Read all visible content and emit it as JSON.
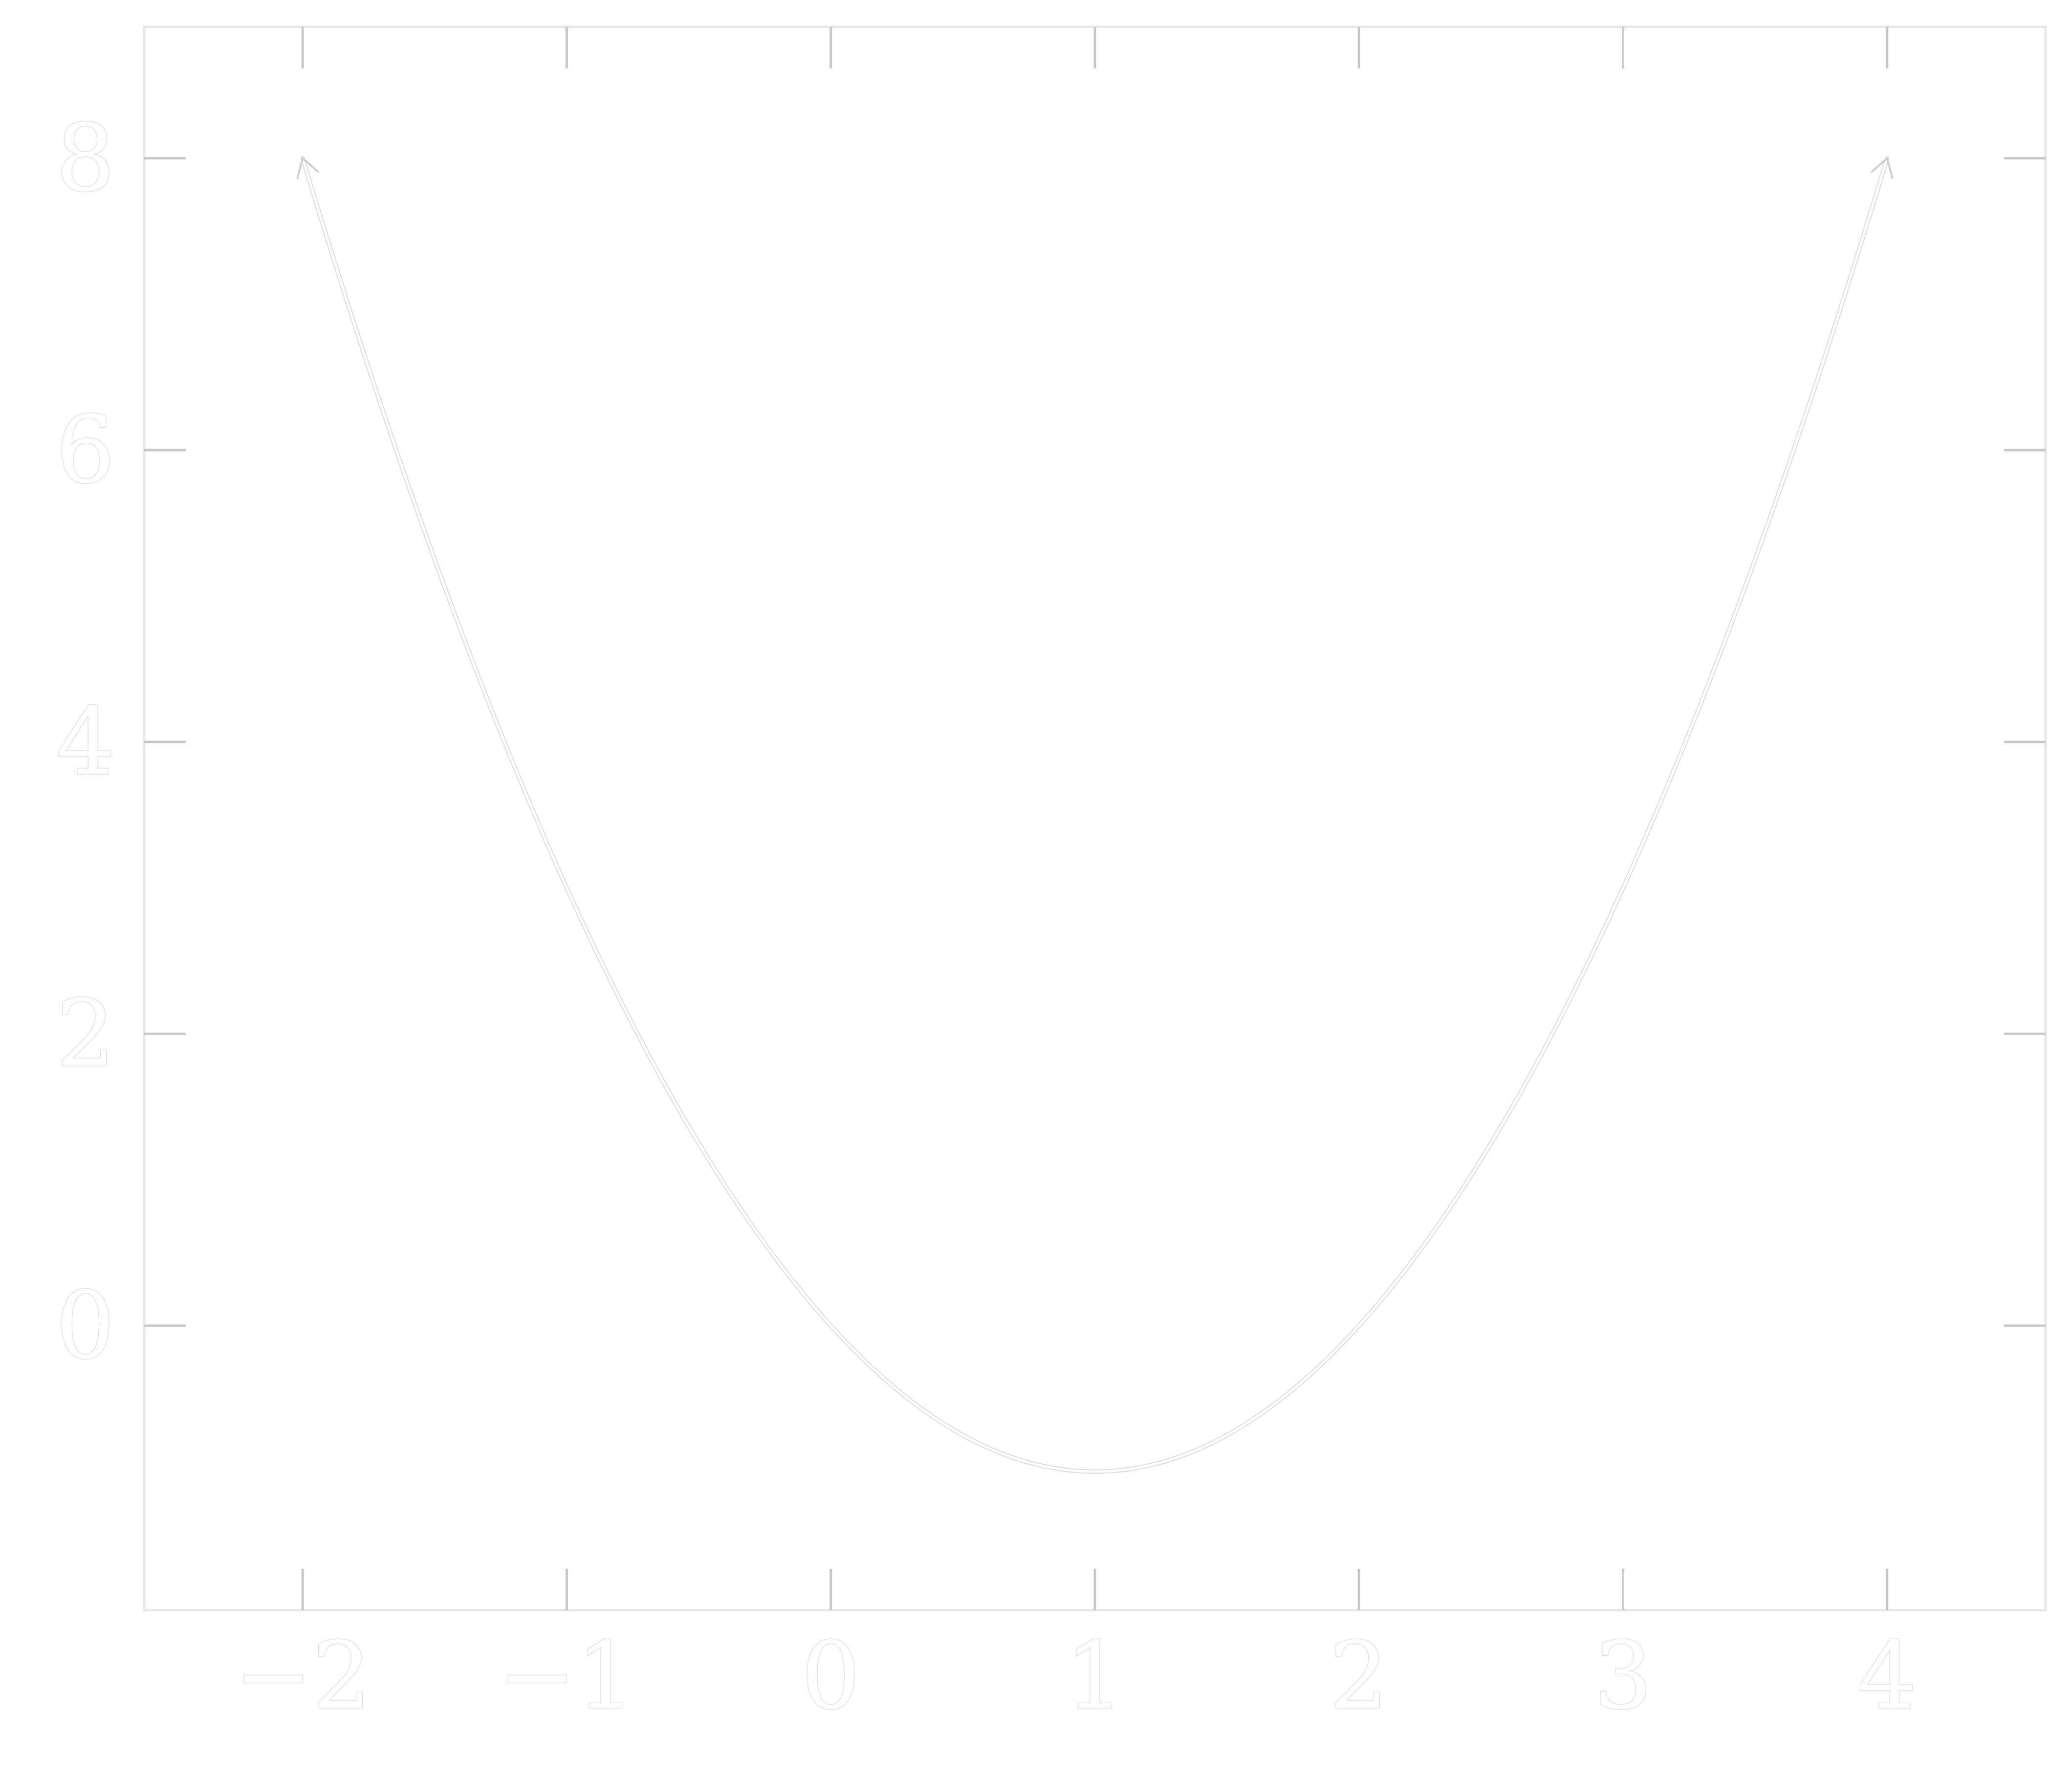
{
  "chart_data": {
    "type": "line",
    "title": "",
    "xlabel": "",
    "ylabel": "",
    "xlim": [
      -2.6,
      4.6
    ],
    "ylim": [
      -1.95,
      8.9
    ],
    "grid": false,
    "legend": "none",
    "x_ticks": [
      -2,
      -1,
      0,
      1,
      2,
      3,
      4
    ],
    "x_tick_labels": [
      "−2",
      "−1",
      "0",
      "1",
      "2",
      "3",
      "4"
    ],
    "y_ticks": [
      0,
      2,
      4,
      6,
      8
    ],
    "y_tick_labels": [
      "0",
      "2",
      "4",
      "6",
      "8"
    ],
    "series": [
      {
        "function": "y = (x - 1)^2 - 1",
        "x_range": [
          -2,
          4
        ],
        "x": [
          -2,
          -1.5,
          -1,
          -0.5,
          0,
          0.5,
          1,
          1.5,
          2,
          2.5,
          3,
          3.5,
          4
        ],
        "y": [
          8,
          5.25,
          3,
          1.25,
          0,
          -0.75,
          -1,
          -0.75,
          0,
          1.25,
          3,
          5.25,
          8
        ],
        "arrows_at_ends": true,
        "color": "#ffffff"
      }
    ],
    "colors": {
      "background": "#ffffff",
      "curve": "#ffffff",
      "curve_outline": "#dddddd",
      "frame": "#e6e6e6",
      "ticks": "#c8c8c8",
      "label_outline": "#dcdcdc"
    }
  }
}
